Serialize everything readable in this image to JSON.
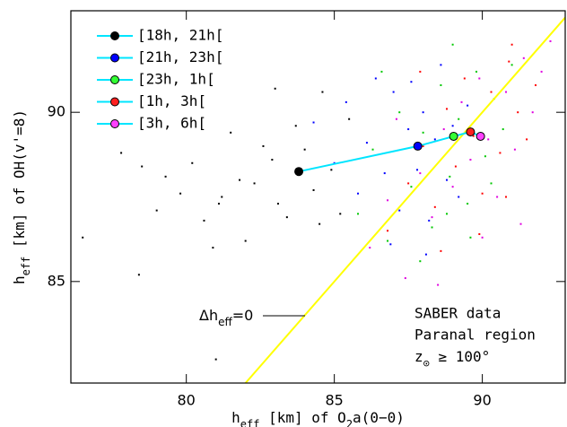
{
  "chart_data": {
    "type": "scatter",
    "xlabel": [
      "h",
      "eff",
      " [km] of O",
      "2",
      "a(0−0)"
    ],
    "ylabel": [
      "h",
      "eff",
      " [km] of OH(v'=8)"
    ],
    "xlim": [
      76.1,
      92.8
    ],
    "ylim": [
      82.0,
      93.0
    ],
    "xticks": [
      80,
      85,
      90
    ],
    "yticks": [
      85,
      90
    ],
    "diagonal": {
      "color": "#ffff00",
      "label": [
        "Δh",
        "eff",
        "=0"
      ]
    },
    "mean_line_color": "#00e5ff",
    "notes": [
      "SABER data",
      "Paranal region",
      [
        "z",
        "⊙",
        " ≥ 100°"
      ]
    ],
    "legend": "upper left",
    "series": [
      {
        "name": "[18h, 21h[",
        "color": "#000000",
        "mean_color": "#000000",
        "mean_x": 83.8,
        "mean_y": 88.25,
        "x": [
          76.5,
          77.8,
          78.5,
          79.0,
          79.3,
          79.8,
          80.2,
          80.6,
          81.0,
          81.2,
          81.5,
          81.8,
          82.0,
          82.3,
          82.6,
          82.9,
          83.1,
          83.4,
          83.7,
          84.0,
          84.3,
          84.6,
          84.9,
          85.2,
          85.5,
          78.4,
          80.9,
          83.0,
          84.5,
          81.1
        ],
        "y": [
          86.3,
          88.8,
          88.4,
          87.1,
          88.1,
          87.6,
          88.5,
          86.8,
          82.7,
          87.5,
          89.4,
          88.0,
          86.2,
          87.9,
          89.0,
          88.6,
          87.3,
          86.9,
          89.6,
          88.9,
          87.7,
          90.6,
          88.3,
          87.0,
          89.8,
          85.2,
          86.0,
          90.7,
          86.7,
          87.3
        ]
      },
      {
        "name": "[21h, 23h[",
        "color": "#0000ff",
        "mean_color": "#0000ff",
        "mean_x": 87.82,
        "mean_y": 89.0,
        "x": [
          84.3,
          85.0,
          85.4,
          85.8,
          86.1,
          86.4,
          86.7,
          87.0,
          87.2,
          87.5,
          87.8,
          88.0,
          88.2,
          88.4,
          88.6,
          88.8,
          89.0,
          89.2,
          89.5,
          86.9,
          87.6,
          88.1
        ],
        "y": [
          89.7,
          88.5,
          90.3,
          87.6,
          89.1,
          91.0,
          88.2,
          90.6,
          87.1,
          89.5,
          88.3,
          90.0,
          86.8,
          89.2,
          91.4,
          88.0,
          89.6,
          87.5,
          90.2,
          86.1,
          90.9,
          85.8
        ]
      },
      {
        "name": "[23h, 1h[",
        "color": "#00c800",
        "mean_color": "#33ff33",
        "mean_x": 89.03,
        "mean_y": 89.29,
        "x": [
          85.8,
          86.3,
          86.8,
          87.2,
          87.6,
          88.0,
          88.3,
          88.6,
          88.9,
          89.2,
          89.5,
          89.8,
          90.1,
          90.4,
          90.7,
          91.0,
          87.9,
          88.8,
          89.6,
          90.3,
          86.6,
          89.0
        ],
        "y": [
          87.0,
          88.9,
          86.2,
          90.0,
          87.8,
          89.4,
          86.6,
          90.8,
          88.1,
          89.8,
          87.3,
          91.2,
          88.7,
          90.4,
          89.5,
          91.4,
          85.6,
          87.0,
          86.3,
          87.9,
          91.2,
          92.0
        ]
      },
      {
        "name": "[1h, 3h[",
        "color": "#ff0000",
        "mean_color": "#ff2020",
        "mean_x": 89.6,
        "mean_y": 89.42,
        "x": [
          86.8,
          87.5,
          88.0,
          88.4,
          88.8,
          89.1,
          89.4,
          89.7,
          90.0,
          90.3,
          90.6,
          90.9,
          91.2,
          91.5,
          91.8,
          88.6,
          89.9,
          90.8,
          87.9,
          91.0
        ],
        "y": [
          86.5,
          87.9,
          89.0,
          87.2,
          90.1,
          88.4,
          91.0,
          89.3,
          87.6,
          90.6,
          88.8,
          91.5,
          90.0,
          89.2,
          90.8,
          85.9,
          86.4,
          87.5,
          91.2,
          92.0
        ]
      },
      {
        "name": "[3h, 6h[",
        "color": "#e000e0",
        "mean_color": "#ff40ff",
        "mean_x": 89.94,
        "mean_y": 89.29,
        "x": [
          86.2,
          86.8,
          87.4,
          87.9,
          88.3,
          88.7,
          89.0,
          89.3,
          89.6,
          89.9,
          90.2,
          90.5,
          90.8,
          91.1,
          91.4,
          91.7,
          92.0,
          92.3,
          88.5,
          90.0,
          91.3,
          87.1
        ],
        "y": [
          86.0,
          87.4,
          85.1,
          88.2,
          86.9,
          89.5,
          87.8,
          90.3,
          88.6,
          91.0,
          89.2,
          87.5,
          90.6,
          88.9,
          91.6,
          90.0,
          91.2,
          92.1,
          84.9,
          86.3,
          86.7,
          89.8
        ]
      }
    ]
  }
}
